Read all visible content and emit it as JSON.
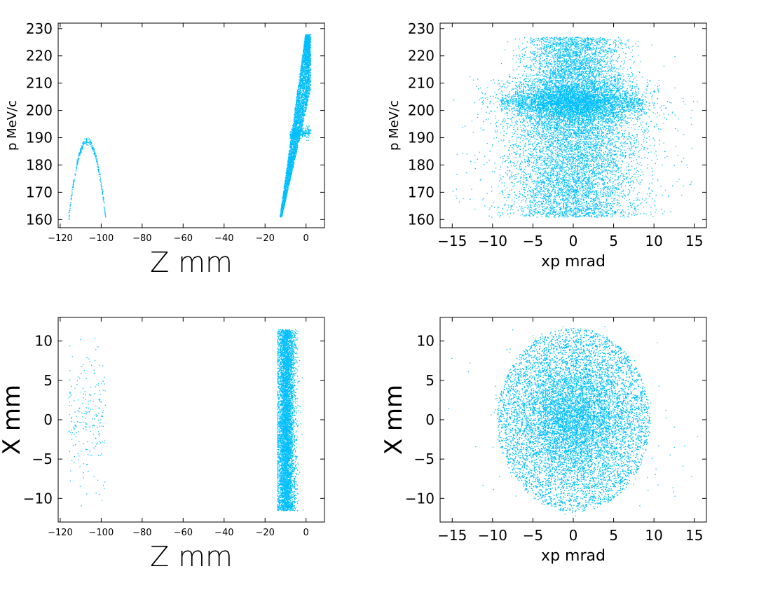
{
  "chart_data": [
    {
      "type": "scatter",
      "panel": "top-left",
      "xlabel": "Z   mm",
      "ylabel": "p  MeV/c",
      "xlim": [
        -121,
        9
      ],
      "ylim": [
        157,
        232
      ],
      "xticks": [
        -120,
        -100,
        -80,
        -60,
        -40,
        -20,
        0
      ],
      "yticks": [
        160,
        170,
        180,
        190,
        200,
        210,
        220,
        230
      ],
      "point_color": "#00bfff",
      "regions": [
        {
          "kind": "arc",
          "z_range": [
            -116,
            -98
          ],
          "peak_z": -107,
          "peak_p": 189,
          "edge_p": 161
        },
        {
          "kind": "band",
          "z_range": [
            -14,
            2
          ],
          "p_range": [
            161,
            228
          ],
          "tail_p": 191
        }
      ]
    },
    {
      "type": "scatter",
      "panel": "top-right",
      "xlabel": "xp  mrad",
      "ylabel": "p  MeV/c",
      "xlim": [
        -16.5,
        16.5
      ],
      "ylim": [
        157,
        232
      ],
      "xticks": [
        -15,
        -10,
        -5,
        0,
        5,
        10,
        15
      ],
      "yticks": [
        160,
        170,
        180,
        190,
        200,
        210,
        220,
        230
      ],
      "point_color": "#00bfff",
      "regions": [
        {
          "kind": "trapezoid",
          "xp_half_width": 9,
          "p_range": [
            161,
            227
          ],
          "dense_p": 203
        }
      ]
    },
    {
      "type": "scatter",
      "panel": "bottom-left",
      "xlabel": "Z   mm",
      "ylabel": "X  mm",
      "xlim": [
        -121,
        9
      ],
      "ylim": [
        -13,
        13
      ],
      "xticks": [
        -120,
        -100,
        -80,
        -60,
        -40,
        -20,
        0
      ],
      "yticks": [
        -10,
        -5,
        0,
        5,
        10
      ],
      "point_color": "#00bfff",
      "regions": [
        {
          "kind": "sparse",
          "z_range": [
            -116,
            -98
          ],
          "x_range": [
            -10,
            11
          ]
        },
        {
          "kind": "dense",
          "z_range": [
            -14,
            2
          ],
          "x_range": [
            -11.5,
            11.5
          ]
        }
      ]
    },
    {
      "type": "scatter",
      "panel": "bottom-right",
      "xlabel": "xp  mrad",
      "ylabel": "X  mm",
      "xlim": [
        -16.5,
        16.5
      ],
      "ylim": [
        -13,
        13
      ],
      "xticks": [
        -15,
        -10,
        -5,
        0,
        5,
        10,
        15
      ],
      "yticks": [
        -10,
        -5,
        0,
        5,
        10
      ],
      "point_color": "#00bfff",
      "regions": [
        {
          "kind": "ellipse",
          "center": [
            0,
            0
          ],
          "xp_radius": 9.5,
          "x_radius": 11.7
        }
      ]
    }
  ]
}
